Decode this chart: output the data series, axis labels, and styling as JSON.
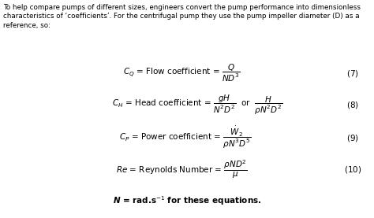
{
  "bg_color": "#ffffff",
  "text_color": "#000000",
  "intro_text": "To help compare pumps of different sizes, engineers convert the pump performance into dimensionless\ncharacteristics of ‘coefficients’. For the centrifugal pump they use the pump impeller diameter (D) as a\nreference, so:",
  "eq7_label": "$C_Q$ = Flow coefficient = $\\dfrac{Q}{ND^3}$",
  "eq7_num": "$(7)$",
  "eq8_label": "$C_H$ = Head coefficient = $\\dfrac{gH}{N^2D^2}$  or  $\\dfrac{H}{\\rho N^2D^2}$",
  "eq8_num": "$(8)$",
  "eq9_label": "$C_P$ = Power coefficient = $\\dfrac{\\dot{W}_2}{\\rho N^3D^5}$",
  "eq9_num": "$(9)$",
  "eq10_label": "$Re$ = Reynolds Number = $\\dfrac{\\rho ND^2}{\\mu}$",
  "eq10_num": "$(10)$",
  "footer": "$\\boldsymbol{N}$ = rad.s$^{-1}$ for these equations.",
  "figsize": [
    4.74,
    2.77
  ],
  "dpi": 100
}
